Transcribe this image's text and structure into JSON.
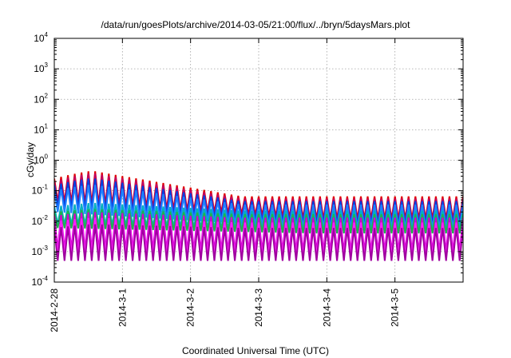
{
  "chart_data": {
    "type": "line",
    "title": "/data/run/goesPlots/archive/2014-03-05/21:00/flux/../bryn/5daysMars.plot",
    "xlabel": "Coordinated Universal Time (UTC)",
    "ylabel": "cGy/day",
    "x_ticks": [
      "2014-2-28",
      "2014-3-1",
      "2014-3-2",
      "2014-3-3",
      "2014-3-4",
      "2014-3-5"
    ],
    "x_range_days": [
      0,
      6.0
    ],
    "y_scale": "log",
    "ylim": [
      0.0001,
      10000
    ],
    "y_ticks": [
      {
        "base": "10",
        "exp": "-4",
        "value": 0.0001
      },
      {
        "base": "10",
        "exp": "-3",
        "value": 0.001
      },
      {
        "base": "10",
        "exp": "-2",
        "value": 0.01
      },
      {
        "base": "10",
        "exp": "-1",
        "value": 0.1
      },
      {
        "base": "10",
        "exp": "0",
        "value": 1
      },
      {
        "base": "10",
        "exp": "1",
        "value": 10
      },
      {
        "base": "10",
        "exp": "2",
        "value": 100
      },
      {
        "base": "10",
        "exp": "3",
        "value": 1000
      },
      {
        "base": "10",
        "exp": "4",
        "value": 10000
      }
    ],
    "grid": true,
    "oscillation_period_days": 0.1,
    "series": [
      {
        "color": "#e00000",
        "peak_start": 0.25,
        "peak_max": 0.45,
        "peak_end": 0.065,
        "trough_start": 0.045,
        "trough_end": 0.012
      },
      {
        "color": "#c00060",
        "peak_start": 0.2,
        "peak_max": 0.38,
        "peak_end": 0.055,
        "trough_start": 0.04,
        "trough_end": 0.01
      },
      {
        "color": "#0040e0",
        "peak_start": 0.15,
        "peak_max": 0.26,
        "peak_end": 0.045,
        "trough_start": 0.03,
        "trough_end": 0.008
      },
      {
        "color": "#2080ff",
        "peak_start": 0.1,
        "peak_max": 0.16,
        "peak_end": 0.035,
        "trough_start": 0.02,
        "trough_end": 0.006
      },
      {
        "color": "#00b0c0",
        "peak_start": 0.03,
        "peak_max": 0.04,
        "peak_end": 0.022,
        "trough_start": 0.008,
        "trough_end": 0.005
      },
      {
        "color": "#20b050",
        "peak_start": 0.02,
        "peak_max": 0.025,
        "peak_end": 0.017,
        "trough_start": 0.006,
        "trough_end": 0.004
      },
      {
        "color": "#d000d0",
        "peak_start": 0.015,
        "peak_max": 0.02,
        "peak_end": 0.013,
        "trough_start": 0.0012,
        "trough_end": 0.001
      },
      {
        "color": "#ff20ff",
        "peak_start": 0.01,
        "peak_max": 0.013,
        "peak_end": 0.009,
        "trough_start": 0.0008,
        "trough_end": 0.0007
      },
      {
        "color": "#a000a0",
        "peak_start": 0.006,
        "peak_max": 0.008,
        "peak_end": 0.006,
        "trough_start": 0.0005,
        "trough_end": 0.0005
      }
    ]
  }
}
